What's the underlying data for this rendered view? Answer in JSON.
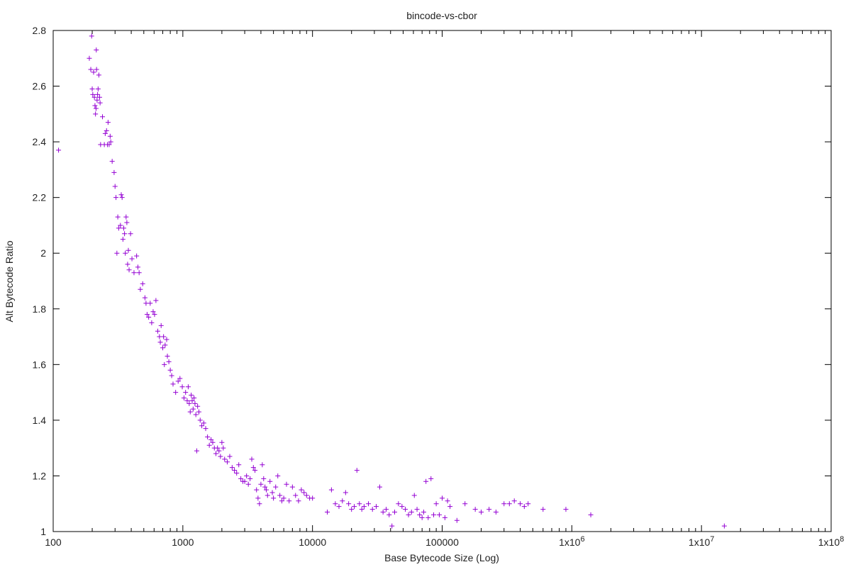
{
  "chart_data": {
    "type": "scatter",
    "title": "bincode-vs-cbor",
    "xlabel": "Base Bytecode Size (Log)",
    "ylabel": "Alt Bytecode Ratio",
    "x_scale": "log",
    "xlim": [
      100,
      100000000
    ],
    "ylim": [
      1,
      2.8
    ],
    "x_ticks": [
      100,
      1000,
      10000,
      100000,
      1000000,
      10000000,
      100000000
    ],
    "x_tick_labels": [
      "100",
      "1000",
      "10000",
      "100000",
      "1x10⁶",
      "1x10⁷",
      "1x10⁸"
    ],
    "y_ticks": [
      1,
      1.2,
      1.4,
      1.6,
      1.8,
      2,
      2.2,
      2.4,
      2.6,
      2.8
    ],
    "y_tick_labels": [
      "1",
      "1.2",
      "1.4",
      "1.6",
      "1.8",
      "2",
      "2.2",
      "2.4",
      "2.6",
      "2.8"
    ],
    "grid": false,
    "marker": "+",
    "color": "#9400d3",
    "series": [
      {
        "points": [
          [
            110,
            2.37
          ],
          [
            190,
            2.7
          ],
          [
            195,
            2.66
          ],
          [
            198,
            2.78
          ],
          [
            200,
            2.59
          ],
          [
            202,
            2.57
          ],
          [
            205,
            2.65
          ],
          [
            208,
            2.56
          ],
          [
            210,
            2.53
          ],
          [
            212,
            2.5
          ],
          [
            214,
            2.52
          ],
          [
            215,
            2.73
          ],
          [
            216,
            2.66
          ],
          [
            218,
            2.55
          ],
          [
            220,
            2.57
          ],
          [
            222,
            2.59
          ],
          [
            225,
            2.64
          ],
          [
            228,
            2.56
          ],
          [
            230,
            2.54
          ],
          [
            232,
            2.39
          ],
          [
            240,
            2.49
          ],
          [
            248,
            2.39
          ],
          [
            252,
            2.43
          ],
          [
            258,
            2.44
          ],
          [
            262,
            2.39
          ],
          [
            265,
            2.47
          ],
          [
            270,
            2.39
          ],
          [
            275,
            2.42
          ],
          [
            278,
            2.4
          ],
          [
            285,
            2.33
          ],
          [
            295,
            2.29
          ],
          [
            300,
            2.24
          ],
          [
            305,
            2.2
          ],
          [
            310,
            2.0
          ],
          [
            315,
            2.13
          ],
          [
            320,
            2.09
          ],
          [
            330,
            2.1
          ],
          [
            335,
            2.21
          ],
          [
            340,
            2.2
          ],
          [
            345,
            2.05
          ],
          [
            350,
            2.09
          ],
          [
            355,
            2.07
          ],
          [
            360,
            2.0
          ],
          [
            365,
            2.13
          ],
          [
            370,
            2.11
          ],
          [
            375,
            1.96
          ],
          [
            380,
            2.01
          ],
          [
            385,
            1.94
          ],
          [
            395,
            2.07
          ],
          [
            405,
            1.98
          ],
          [
            420,
            1.93
          ],
          [
            440,
            1.99
          ],
          [
            450,
            1.95
          ],
          [
            460,
            1.93
          ],
          [
            470,
            1.87
          ],
          [
            490,
            1.89
          ],
          [
            510,
            1.84
          ],
          [
            520,
            1.82
          ],
          [
            530,
            1.78
          ],
          [
            545,
            1.77
          ],
          [
            560,
            1.82
          ],
          [
            575,
            1.75
          ],
          [
            590,
            1.79
          ],
          [
            605,
            1.78
          ],
          [
            620,
            1.83
          ],
          [
            640,
            1.72
          ],
          [
            660,
            1.7
          ],
          [
            670,
            1.68
          ],
          [
            680,
            1.74
          ],
          [
            700,
            1.66
          ],
          [
            710,
            1.7
          ],
          [
            720,
            1.6
          ],
          [
            730,
            1.67
          ],
          [
            750,
            1.69
          ],
          [
            760,
            1.63
          ],
          [
            780,
            1.61
          ],
          [
            800,
            1.58
          ],
          [
            820,
            1.56
          ],
          [
            840,
            1.53
          ],
          [
            880,
            1.5
          ],
          [
            920,
            1.54
          ],
          [
            950,
            1.55
          ],
          [
            990,
            1.52
          ],
          [
            1020,
            1.48
          ],
          [
            1050,
            1.5
          ],
          [
            1080,
            1.47
          ],
          [
            1100,
            1.52
          ],
          [
            1120,
            1.46
          ],
          [
            1140,
            1.43
          ],
          [
            1160,
            1.49
          ],
          [
            1180,
            1.47
          ],
          [
            1200,
            1.44
          ],
          [
            1220,
            1.48
          ],
          [
            1240,
            1.46
          ],
          [
            1260,
            1.42
          ],
          [
            1280,
            1.29
          ],
          [
            1300,
            1.45
          ],
          [
            1330,
            1.43
          ],
          [
            1360,
            1.4
          ],
          [
            1400,
            1.38
          ],
          [
            1450,
            1.39
          ],
          [
            1500,
            1.37
          ],
          [
            1550,
            1.34
          ],
          [
            1600,
            1.31
          ],
          [
            1650,
            1.33
          ],
          [
            1700,
            1.32
          ],
          [
            1750,
            1.3
          ],
          [
            1800,
            1.28
          ],
          [
            1850,
            1.3
          ],
          [
            1900,
            1.29
          ],
          [
            1950,
            1.27
          ],
          [
            2000,
            1.32
          ],
          [
            2050,
            1.3
          ],
          [
            2100,
            1.26
          ],
          [
            2200,
            1.25
          ],
          [
            2300,
            1.27
          ],
          [
            2400,
            1.23
          ],
          [
            2500,
            1.22
          ],
          [
            2600,
            1.21
          ],
          [
            2700,
            1.24
          ],
          [
            2800,
            1.19
          ],
          [
            2900,
            1.18
          ],
          [
            3000,
            1.18
          ],
          [
            3100,
            1.2
          ],
          [
            3200,
            1.17
          ],
          [
            3300,
            1.19
          ],
          [
            3400,
            1.26
          ],
          [
            3500,
            1.23
          ],
          [
            3600,
            1.22
          ],
          [
            3700,
            1.15
          ],
          [
            3800,
            1.12
          ],
          [
            3900,
            1.1
          ],
          [
            4000,
            1.17
          ],
          [
            4100,
            1.24
          ],
          [
            4200,
            1.19
          ],
          [
            4300,
            1.16
          ],
          [
            4400,
            1.15
          ],
          [
            4500,
            1.13
          ],
          [
            4700,
            1.18
          ],
          [
            4900,
            1.14
          ],
          [
            5000,
            1.12
          ],
          [
            5200,
            1.16
          ],
          [
            5400,
            1.2
          ],
          [
            5600,
            1.13
          ],
          [
            5800,
            1.11
          ],
          [
            6000,
            1.12
          ],
          [
            6300,
            1.17
          ],
          [
            6600,
            1.11
          ],
          [
            7000,
            1.16
          ],
          [
            7400,
            1.13
          ],
          [
            7800,
            1.11
          ],
          [
            8200,
            1.15
          ],
          [
            8600,
            1.14
          ],
          [
            9000,
            1.13
          ],
          [
            9500,
            1.12
          ],
          [
            10000,
            1.12
          ],
          [
            13000,
            1.07
          ],
          [
            14000,
            1.15
          ],
          [
            15000,
            1.1
          ],
          [
            16000,
            1.09
          ],
          [
            17000,
            1.11
          ],
          [
            18000,
            1.14
          ],
          [
            19000,
            1.1
          ],
          [
            20000,
            1.08
          ],
          [
            21000,
            1.09
          ],
          [
            22000,
            1.22
          ],
          [
            23000,
            1.1
          ],
          [
            24000,
            1.08
          ],
          [
            25000,
            1.09
          ],
          [
            27000,
            1.1
          ],
          [
            29000,
            1.08
          ],
          [
            31000,
            1.09
          ],
          [
            33000,
            1.16
          ],
          [
            35000,
            1.07
          ],
          [
            37000,
            1.08
          ],
          [
            39000,
            1.06
          ],
          [
            41000,
            1.02
          ],
          [
            43000,
            1.07
          ],
          [
            46000,
            1.1
          ],
          [
            49000,
            1.09
          ],
          [
            52000,
            1.08
          ],
          [
            55000,
            1.06
          ],
          [
            58000,
            1.07
          ],
          [
            61000,
            1.13
          ],
          [
            64000,
            1.08
          ],
          [
            67000,
            1.06
          ],
          [
            70000,
            1.05
          ],
          [
            72000,
            1.07
          ],
          [
            75000,
            1.18
          ],
          [
            78000,
            1.05
          ],
          [
            82000,
            1.19
          ],
          [
            86000,
            1.06
          ],
          [
            90000,
            1.1
          ],
          [
            95000,
            1.06
          ],
          [
            100000,
            1.12
          ],
          [
            105000,
            1.05
          ],
          [
            110000,
            1.11
          ],
          [
            115000,
            1.09
          ],
          [
            130000,
            1.04
          ],
          [
            150000,
            1.1
          ],
          [
            180000,
            1.08
          ],
          [
            200000,
            1.07
          ],
          [
            230000,
            1.08
          ],
          [
            260000,
            1.07
          ],
          [
            300000,
            1.1
          ],
          [
            330000,
            1.1
          ],
          [
            360000,
            1.11
          ],
          [
            400000,
            1.1
          ],
          [
            430000,
            1.09
          ],
          [
            460000,
            1.1
          ],
          [
            600000,
            1.08
          ],
          [
            900000,
            1.08
          ],
          [
            1400000,
            1.06
          ],
          [
            15000000,
            1.02
          ]
        ]
      }
    ]
  }
}
